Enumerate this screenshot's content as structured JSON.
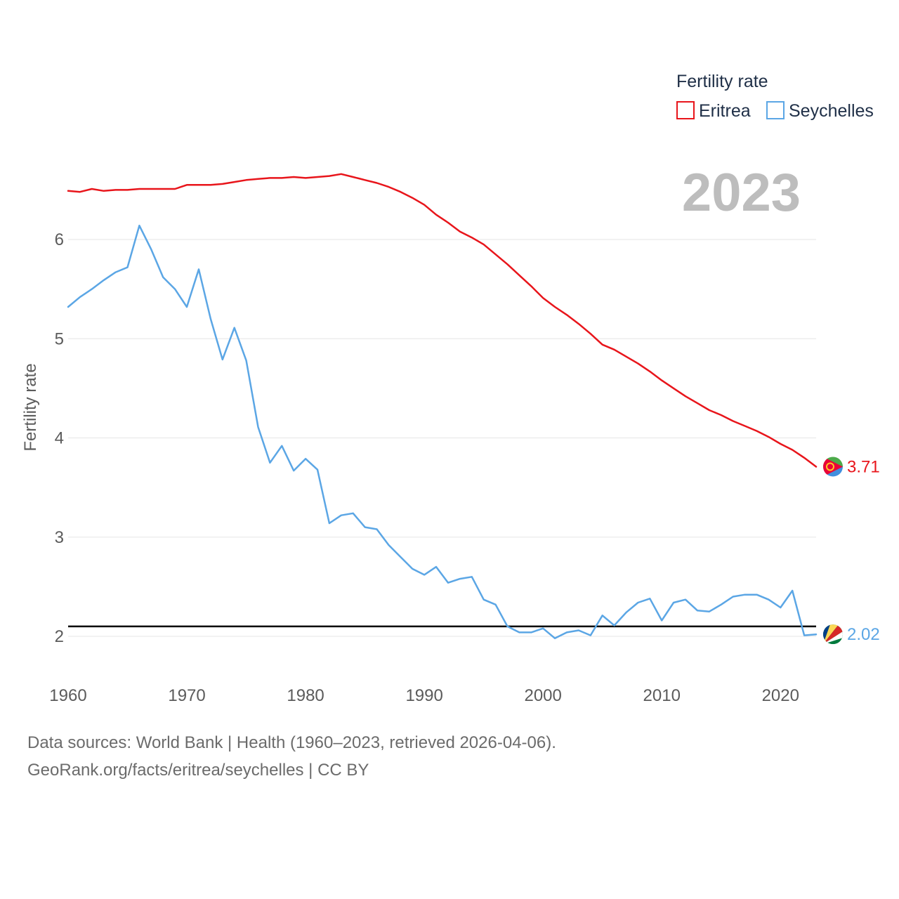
{
  "chart_data": {
    "type": "line",
    "ylabel": "Fertility rate",
    "legend_title": "Fertility rate",
    "year_label": "2023",
    "xlim": [
      1960,
      2023
    ],
    "ylim": [
      1.6,
      6.8
    ],
    "x_ticks": [
      1960,
      1970,
      1980,
      1990,
      2000,
      2010,
      2020
    ],
    "y_ticks": [
      2,
      3,
      4,
      5,
      6
    ],
    "reference_line": 2.1,
    "x": [
      1960,
      1961,
      1962,
      1963,
      1964,
      1965,
      1966,
      1967,
      1968,
      1969,
      1970,
      1971,
      1972,
      1973,
      1974,
      1975,
      1976,
      1977,
      1978,
      1979,
      1980,
      1981,
      1982,
      1983,
      1984,
      1985,
      1986,
      1987,
      1988,
      1989,
      1990,
      1991,
      1992,
      1993,
      1994,
      1995,
      1996,
      1997,
      1998,
      1999,
      2000,
      2001,
      2002,
      2003,
      2004,
      2005,
      2006,
      2007,
      2008,
      2009,
      2010,
      2011,
      2012,
      2013,
      2014,
      2015,
      2016,
      2017,
      2018,
      2019,
      2020,
      2021,
      2022,
      2023
    ],
    "series": [
      {
        "name": "Eritrea",
        "color": "#e8151b",
        "end_label": "3.71",
        "values": [
          6.49,
          6.48,
          6.51,
          6.49,
          6.5,
          6.5,
          6.51,
          6.51,
          6.51,
          6.51,
          6.55,
          6.55,
          6.55,
          6.56,
          6.58,
          6.6,
          6.61,
          6.62,
          6.62,
          6.63,
          6.62,
          6.63,
          6.64,
          6.66,
          6.63,
          6.6,
          6.57,
          6.53,
          6.48,
          6.42,
          6.35,
          6.25,
          6.17,
          6.08,
          6.02,
          5.95,
          5.85,
          5.75,
          5.64,
          5.53,
          5.41,
          5.32,
          5.24,
          5.15,
          5.05,
          4.94,
          4.89,
          4.82,
          4.75,
          4.67,
          4.58,
          4.5,
          4.42,
          4.35,
          4.28,
          4.23,
          4.17,
          4.12,
          4.07,
          4.01,
          3.94,
          3.88,
          3.8,
          3.71
        ]
      },
      {
        "name": "Seychelles",
        "color": "#5ba6e5",
        "end_label": "2.02",
        "values": [
          5.32,
          5.42,
          5.5,
          5.59,
          5.67,
          5.72,
          6.14,
          5.9,
          5.62,
          5.5,
          5.32,
          5.7,
          5.2,
          4.79,
          5.11,
          4.78,
          4.11,
          3.75,
          3.92,
          3.67,
          3.79,
          3.68,
          3.14,
          3.22,
          3.24,
          3.1,
          3.08,
          2.92,
          2.8,
          2.68,
          2.62,
          2.7,
          2.54,
          2.58,
          2.6,
          2.37,
          2.32,
          2.1,
          2.04,
          2.04,
          2.08,
          1.98,
          2.04,
          2.06,
          2.01,
          2.21,
          2.11,
          2.24,
          2.34,
          2.38,
          2.16,
          2.34,
          2.37,
          2.26,
          2.25,
          2.32,
          2.4,
          2.42,
          2.42,
          2.37,
          2.29,
          2.46,
          2.01,
          2.02
        ]
      }
    ]
  },
  "footer": {
    "line1": "Data sources: World Bank | Health (1960–2023, retrieved 2026-04-06).",
    "line2": "GeoRank.org/facts/eritrea/seychelles | CC BY"
  }
}
